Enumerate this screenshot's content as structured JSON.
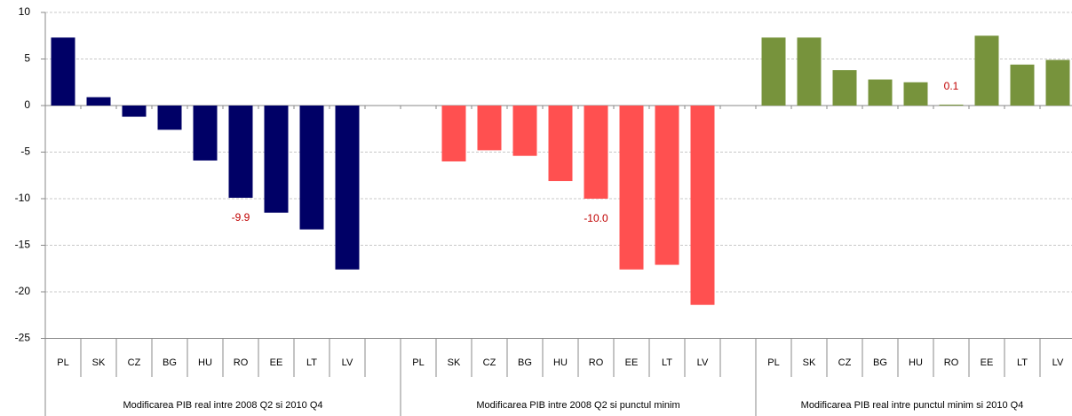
{
  "chart_data": {
    "type": "bar",
    "ylim": [
      -25,
      10
    ],
    "yticks": [
      -25,
      -20,
      -15,
      -10,
      -5,
      0,
      5,
      10
    ],
    "grid": true,
    "groups": [
      {
        "label": "Modificarea PIB real intre 2008 Q2 si 2010 Q4",
        "color": "#000066",
        "categories": [
          "PL",
          "SK",
          "CZ",
          "BG",
          "HU",
          "RO",
          "EE",
          "LT",
          "LV",
          null
        ],
        "values": [
          7.3,
          0.9,
          -1.2,
          -2.6,
          -5.9,
          -9.9,
          -11.5,
          -13.3,
          -17.6,
          null
        ],
        "value_labels": [
          null,
          null,
          null,
          null,
          null,
          "-9.9",
          null,
          null,
          null,
          null
        ]
      },
      {
        "label": "Modificarea PIB intre 2008 Q2 si punctul minim",
        "color": "#ff5050",
        "categories": [
          "PL",
          "SK",
          "CZ",
          "BG",
          "HU",
          "RO",
          "EE",
          "LT",
          "LV",
          null
        ],
        "values": [
          null,
          -6.0,
          -4.8,
          -5.4,
          -8.1,
          -10.0,
          -17.6,
          -17.1,
          -21.4,
          null
        ],
        "value_labels": [
          null,
          null,
          null,
          null,
          null,
          "-10.0",
          null,
          null,
          null,
          null
        ]
      },
      {
        "label": "Modificarea PIB real intre punctul minim si 2010 Q4",
        "color": "#77933c",
        "categories": [
          "PL",
          "SK",
          "CZ",
          "BG",
          "HU",
          "RO",
          "EE",
          "LT",
          "LV"
        ],
        "values": [
          7.3,
          7.3,
          3.8,
          2.8,
          2.5,
          0.1,
          7.5,
          4.4,
          4.9
        ],
        "value_labels": [
          null,
          null,
          null,
          null,
          null,
          "0.1",
          null,
          null,
          null
        ]
      }
    ]
  }
}
